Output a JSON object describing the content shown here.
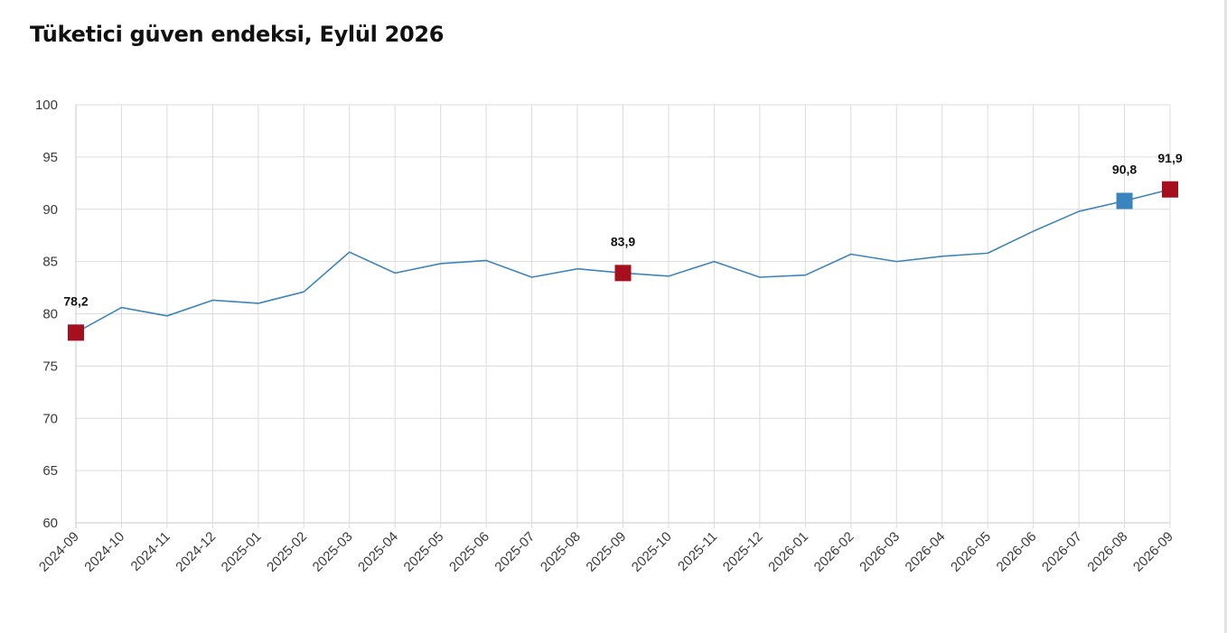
{
  "title": "Tüketici güven endeksi, Eylül 2026",
  "chart_data": {
    "type": "line",
    "title": "Tüketici güven endeksi, Eylül 2026",
    "xlabel": "",
    "ylabel": "",
    "ylim": [
      60,
      100
    ],
    "yticks": [
      60,
      65,
      70,
      75,
      80,
      85,
      90,
      95,
      100
    ],
    "grid": true,
    "categories": [
      "2024-09",
      "2024-10",
      "2024-11",
      "2024-12",
      "2025-01",
      "2025-02",
      "2025-03",
      "2025-04",
      "2025-05",
      "2025-06",
      "2025-07",
      "2025-08",
      "2025-09",
      "2025-10",
      "2025-11",
      "2025-12",
      "2026-01",
      "2026-02",
      "2026-03",
      "2026-04",
      "2026-05",
      "2026-06",
      "2026-07",
      "2026-08",
      "2026-09"
    ],
    "series": [
      {
        "values": [
          78.2,
          80.6,
          79.8,
          81.3,
          81.0,
          82.1,
          85.9,
          83.9,
          84.8,
          85.1,
          83.5,
          84.3,
          83.9,
          83.6,
          85.0,
          83.5,
          83.7,
          85.7,
          85.0,
          85.5,
          85.8,
          87.9,
          89.8,
          90.8,
          91.9
        ],
        "color": "#3d85b8"
      }
    ],
    "highlights": [
      {
        "category": "2024-09",
        "label": "78,2",
        "color": "#a50f1e"
      },
      {
        "category": "2025-09",
        "label": "83,9",
        "color": "#a50f1e"
      },
      {
        "category": "2026-08",
        "label": "90,8",
        "color": "#3a84c0"
      },
      {
        "category": "2026-09",
        "label": "91,9",
        "color": "#a50f1e"
      }
    ],
    "colors": {
      "grid": "#dcdcdc",
      "axis": "#c8c8c8",
      "text": "#3a3a3a"
    }
  }
}
